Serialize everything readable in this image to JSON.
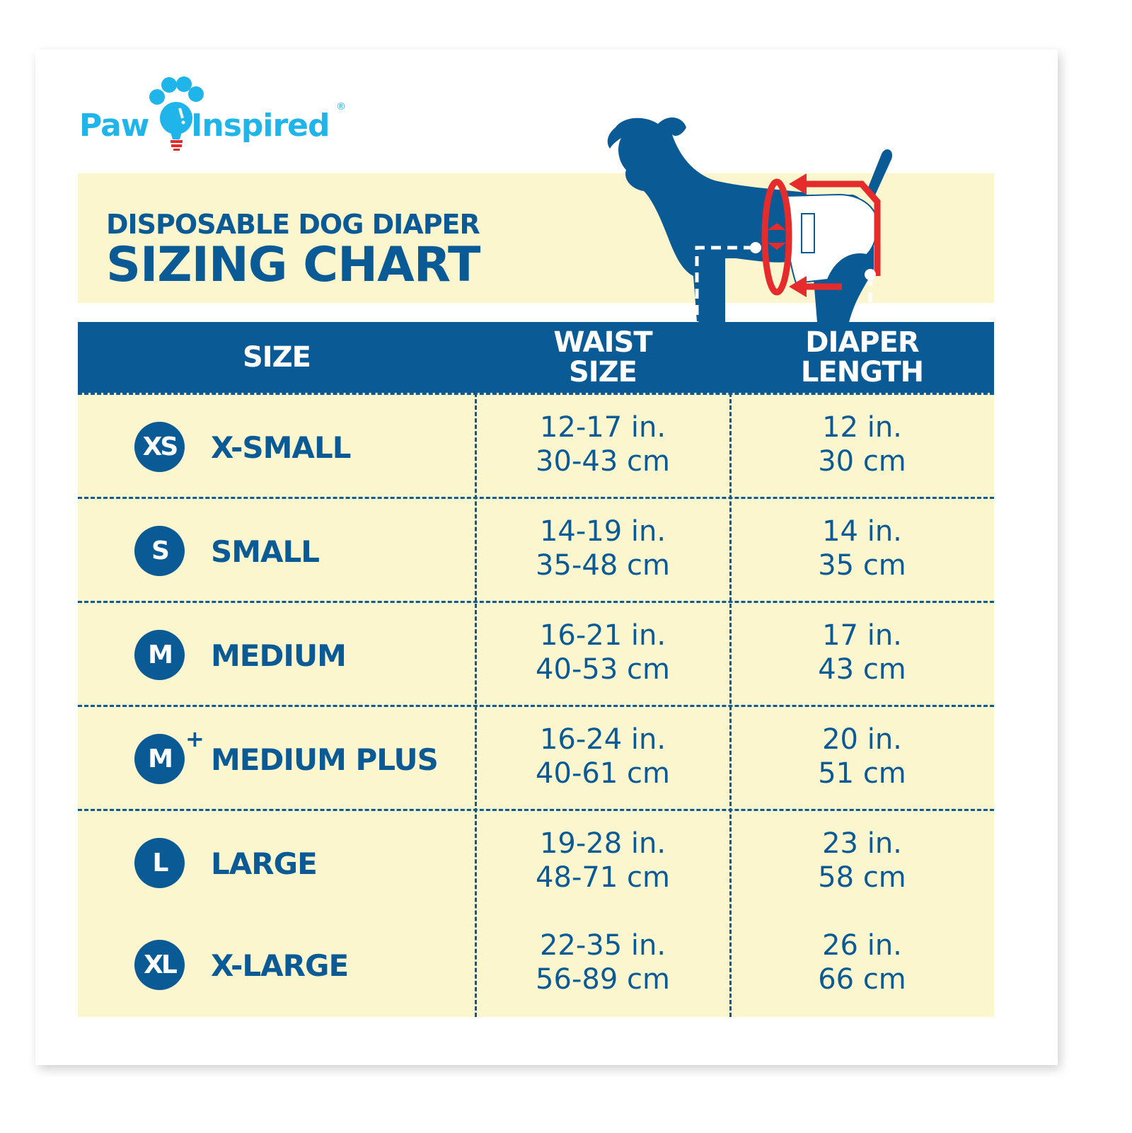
{
  "brand": {
    "logo_text_left": "Paw",
    "logo_text_right": "Inspired",
    "registered": "®"
  },
  "title": {
    "line1": "DISPOSABLE DOG DIAPER",
    "line2": "SIZING CHART"
  },
  "table": {
    "headers": {
      "size": "SIZE",
      "waist": [
        "WAIST",
        "SIZE"
      ],
      "length": [
        "DIAPER",
        "LENGTH"
      ]
    },
    "rows": [
      {
        "badge": "XS",
        "plus": "",
        "name": "X-SMALL",
        "waist_in": "12-17 in.",
        "waist_cm": "30-43 cm",
        "length_in": "12 in.",
        "length_cm": "30 cm"
      },
      {
        "badge": "S",
        "plus": "",
        "name": "SMALL",
        "waist_in": "14-19 in.",
        "waist_cm": "35-48 cm",
        "length_in": "14 in.",
        "length_cm": "35 cm"
      },
      {
        "badge": "M",
        "plus": "",
        "name": "MEDIUM",
        "waist_in": "16-21 in.",
        "waist_cm": "40-53 cm",
        "length_in": "17 in.",
        "length_cm": "43 cm"
      },
      {
        "badge": "M",
        "plus": "+",
        "name": "MEDIUM PLUS",
        "waist_in": "16-24 in.",
        "waist_cm": "40-61 cm",
        "length_in": "20 in.",
        "length_cm": "51 cm"
      },
      {
        "badge": "L",
        "plus": "",
        "name": "LARGE",
        "waist_in": "19-28 in.",
        "waist_cm": "48-71 cm",
        "length_in": "23 in.",
        "length_cm": "58 cm"
      },
      {
        "badge": "XL",
        "plus": "",
        "name": "X-LARGE",
        "waist_in": "22-35 in.",
        "waist_cm": "56-89 cm",
        "length_in": "26 in.",
        "length_cm": "66 cm"
      }
    ]
  },
  "colors": {
    "blue": "#0a5a96",
    "cream": "#fcf6cf",
    "red": "#e52b2b",
    "logo_cyan": "#1fb5ea"
  },
  "icons": [
    "paw-lightbulb-logo",
    "dog-diaper-illustration"
  ]
}
